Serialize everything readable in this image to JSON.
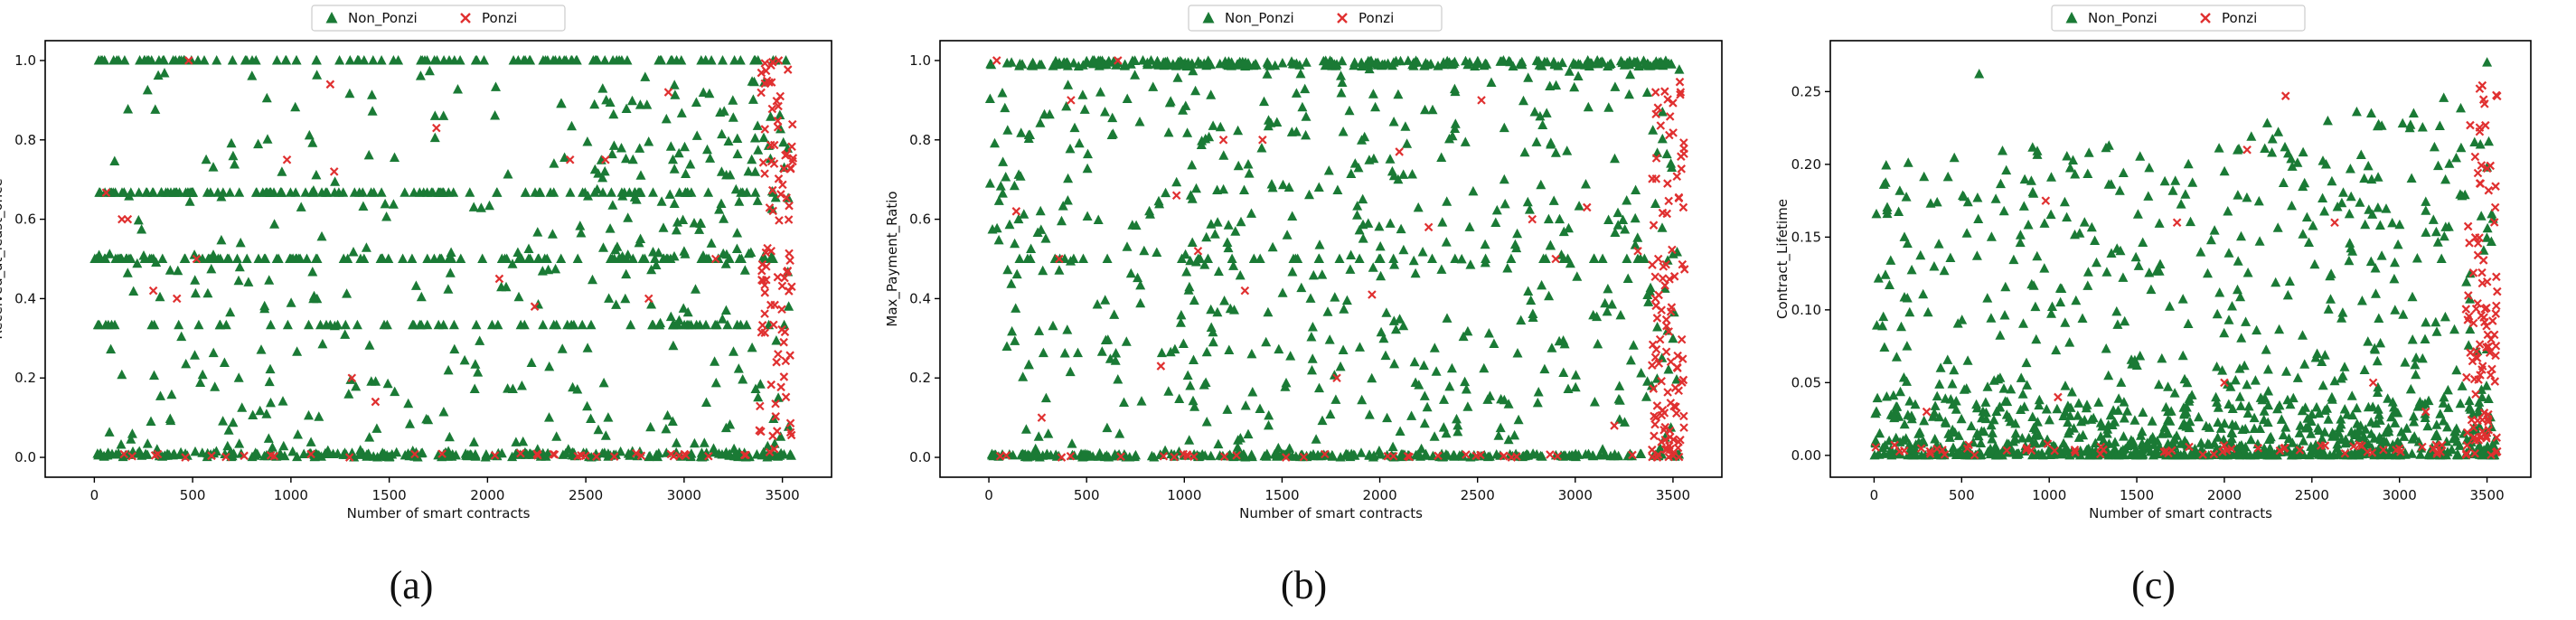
{
  "colors": {
    "non_ponzi": "#1a7a35",
    "ponzi": "#e03030",
    "axis": "#000000"
  },
  "chart_data": [
    {
      "type": "scatter",
      "panel_label": "(a)",
      "xlabel": "Number of smart contracts",
      "ylabel": "Received_at_least_once",
      "xlim": [
        -250,
        3750
      ],
      "ylim": [
        -0.05,
        1.05
      ],
      "xticks": [
        "0",
        "500",
        "1000",
        "1500",
        "2000",
        "2500",
        "3000",
        "3500"
      ],
      "yticks": [
        "0.0",
        "0.2",
        "0.4",
        "0.6",
        "0.8",
        "1.0"
      ],
      "legend": [
        "Non_Ponzi",
        "Ponzi"
      ],
      "legend_position": "top-center",
      "grid": false,
      "series": [
        {
          "name": "Non_Ponzi",
          "marker": "triangle",
          "x": [],
          "y": []
        },
        {
          "name": "Ponzi",
          "marker": "x",
          "x": [],
          "y": []
        }
      ]
    },
    {
      "type": "scatter",
      "panel_label": "(b)",
      "xlabel": "Number of smart contracts",
      "ylabel": "Max_Payment_Ratio",
      "xlim": [
        -250,
        3750
      ],
      "ylim": [
        -0.05,
        1.05
      ],
      "xticks": [
        "0",
        "500",
        "1000",
        "1500",
        "2000",
        "2500",
        "3000",
        "3500"
      ],
      "yticks": [
        "0.0",
        "0.2",
        "0.4",
        "0.6",
        "0.8",
        "1.0"
      ],
      "legend": [
        "Non_Ponzi",
        "Ponzi"
      ],
      "legend_position": "top-center",
      "grid": false,
      "series": [
        {
          "name": "Non_Ponzi",
          "marker": "triangle",
          "x": [],
          "y": []
        },
        {
          "name": "Ponzi",
          "marker": "x",
          "x": [],
          "y": []
        }
      ]
    },
    {
      "type": "scatter",
      "panel_label": "(c)",
      "xlabel": "Number of smart contracts",
      "ylabel": "Contract_Lifetime",
      "xlim": [
        -250,
        3750
      ],
      "ylim": [
        -0.015,
        0.285
      ],
      "xticks": [
        "0",
        "500",
        "1000",
        "1500",
        "2000",
        "2500",
        "3000",
        "3500"
      ],
      "yticks": [
        "0.00",
        "0.05",
        "0.10",
        "0.15",
        "0.20",
        "0.25"
      ],
      "legend": [
        "Non_Ponzi",
        "Ponzi"
      ],
      "legend_position": "top-center",
      "grid": false,
      "series": [
        {
          "name": "Non_Ponzi",
          "marker": "triangle",
          "x": [],
          "y": []
        },
        {
          "name": "Ponzi",
          "marker": "x",
          "x": [],
          "y": []
        }
      ]
    }
  ]
}
